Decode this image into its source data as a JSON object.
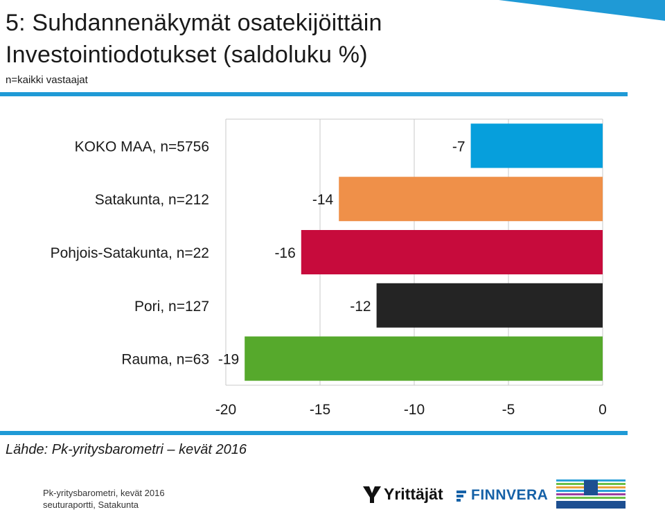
{
  "header": {
    "title_line1": "5: Suhdannenäkymät osatekijöittäin",
    "title_line2": "Investointiodotukset (saldoluku %)",
    "subtitle": "n=kaikki vastaajat"
  },
  "chart_data": {
    "type": "bar",
    "orientation": "horizontal",
    "categories": [
      "KOKO MAA, n=5756",
      "Satakunta, n=212",
      "Pohjois-Satakunta, n=22",
      "Pori, n=127",
      "Rauma, n=63"
    ],
    "values": [
      -7,
      -14,
      -16,
      -12,
      -19
    ],
    "colors": [
      "#069fdc",
      "#ef9049",
      "#c70b3c",
      "#242424",
      "#56a92c"
    ],
    "xlim": [
      -20,
      0
    ],
    "xticks": [
      -20,
      -15,
      -10,
      -5,
      0
    ],
    "data_labels": [
      "-7",
      "-14",
      "-16",
      "-12",
      "-19"
    ],
    "grid": true,
    "legend": "none"
  },
  "source": "Lähde: Pk-yritysbarometri – kevät 2016",
  "footer": {
    "line1": "Pk-yritysbarometri, kevät 2016",
    "line2": "seuturaportti, Satakunta"
  },
  "logos": {
    "yrittajat": "Yrittäjät",
    "finnvera": "FINNVERA",
    "tem": "TYÖ- JA ELINKEINOMINISTERIÖ"
  },
  "colors": {
    "accent": "#1f9ad6"
  }
}
